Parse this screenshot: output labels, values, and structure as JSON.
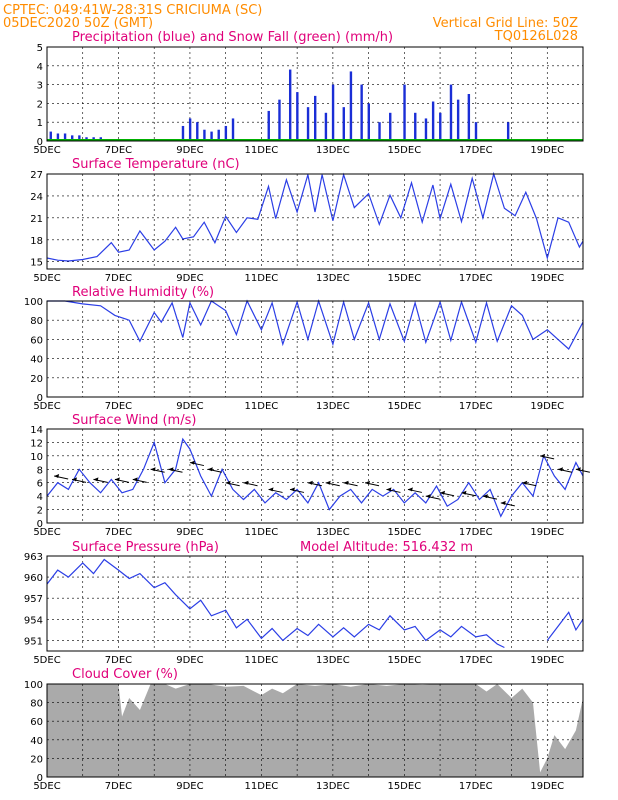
{
  "header": {
    "line1": "CPTEC:   049:41W-28:31S   CRICIUMA (SC)",
    "line2_left": "05DEC2020 50Z (GMT)",
    "line2_right": "Vertical Grid Line: 50Z",
    "line3_right": "TQ0126L028"
  },
  "x_ticks": [
    "5DEC",
    "7DEC",
    "9DEC",
    "11DEC",
    "13DEC",
    "15DEC",
    "17DEC",
    "19DEC"
  ],
  "x_range_days": [
    5,
    20
  ],
  "colors": {
    "series": "#2b3ee6",
    "precip": "#1a2ed6",
    "snow": "#00b000",
    "cloud": "#aaaaaa",
    "title": "#e0007a",
    "header": "#ff8c00"
  },
  "chart_data": [
    {
      "type": "bar",
      "title": "Precipitation (blue) and Snow Fall (green) (mm/h)",
      "ylim": [
        0,
        5
      ],
      "yticks": [
        "0",
        "1",
        "2",
        "3",
        "4",
        "5"
      ],
      "series": [
        {
          "name": "Precipitation",
          "x": [
            5.1,
            5.3,
            5.5,
            5.7,
            5.9,
            6.1,
            6.3,
            6.5,
            6.7,
            6.9,
            8.8,
            9.0,
            9.2,
            9.4,
            9.6,
            9.8,
            10.0,
            10.2,
            11.2,
            11.5,
            11.8,
            12.0,
            12.3,
            12.5,
            12.8,
            13.0,
            13.3,
            13.5,
            13.8,
            14.0,
            14.3,
            14.6,
            15.0,
            15.3,
            15.6,
            15.8,
            16.0,
            16.3,
            16.5,
            16.8,
            17.0,
            17.9
          ],
          "values": [
            0.5,
            0.4,
            0.4,
            0.3,
            0.3,
            0.2,
            0.2,
            0.2,
            0.1,
            0.1,
            0.8,
            1.2,
            1.0,
            0.6,
            0.5,
            0.6,
            0.8,
            1.2,
            1.6,
            2.2,
            3.8,
            2.6,
            1.8,
            2.4,
            1.5,
            3.0,
            1.8,
            3.7,
            3.0,
            2.0,
            1.0,
            1.5,
            3.0,
            1.5,
            1.2,
            2.1,
            1.5,
            3.0,
            2.2,
            2.5,
            1.0,
            1.0
          ]
        }
      ]
    },
    {
      "type": "line",
      "title": "Surface Temperature (nC)",
      "ylim": [
        14,
        27
      ],
      "yticks": [
        "15",
        "18",
        "21",
        "24",
        "27"
      ],
      "series": [
        {
          "name": "",
          "x": [
            5.0,
            5.3,
            5.6,
            6.0,
            6.4,
            6.8,
            7.0,
            7.3,
            7.6,
            8.0,
            8.3,
            8.6,
            8.8,
            9.1,
            9.4,
            9.7,
            10.0,
            10.3,
            10.6,
            10.9,
            11.2,
            11.4,
            11.7,
            12.0,
            12.3,
            12.5,
            12.7,
            13.0,
            13.3,
            13.6,
            14.0,
            14.3,
            14.6,
            14.9,
            15.2,
            15.5,
            15.8,
            16.0,
            16.3,
            16.6,
            16.9,
            17.2,
            17.5,
            17.8,
            18.1,
            18.4,
            18.7,
            19.0,
            19.3,
            19.6,
            19.9,
            20.0
          ],
          "values": [
            15.5,
            15.2,
            15.1,
            15.3,
            15.7,
            17.6,
            16.3,
            16.6,
            19.2,
            16.6,
            17.8,
            19.7,
            18.1,
            18.4,
            20.4,
            17.6,
            21.2,
            19.0,
            21.0,
            20.8,
            25.3,
            20.9,
            26.2,
            21.8,
            26.9,
            21.8,
            26.9,
            20.6,
            26.9,
            22.4,
            24.3,
            20.1,
            24.1,
            21.0,
            25.8,
            20.4,
            25.5,
            20.9,
            25.6,
            20.5,
            26.4,
            21.0,
            27.0,
            22.3,
            21.3,
            24.5,
            20.9,
            15.5,
            21.0,
            20.4,
            17.0,
            17.8
          ]
        }
      ]
    },
    {
      "type": "line",
      "title": "Relative Humidity (%)",
      "ylim": [
        0,
        100
      ],
      "yticks": [
        "0",
        "20",
        "40",
        "60",
        "80",
        "100"
      ],
      "series": [
        {
          "name": "",
          "x": [
            5.0,
            5.5,
            6.0,
            6.5,
            6.9,
            7.3,
            7.6,
            8.0,
            8.2,
            8.5,
            8.8,
            9.0,
            9.3,
            9.6,
            10.0,
            10.3,
            10.6,
            11.0,
            11.3,
            11.6,
            12.0,
            12.3,
            12.6,
            13.0,
            13.3,
            13.6,
            14.0,
            14.3,
            14.6,
            15.0,
            15.3,
            15.6,
            16.0,
            16.3,
            16.6,
            17.0,
            17.3,
            17.6,
            18.0,
            18.3,
            18.6,
            19.0,
            19.3,
            19.6,
            20.0
          ],
          "values": [
            100,
            100,
            97,
            95,
            85,
            80,
            58,
            88,
            78,
            98,
            62,
            98,
            75,
            100,
            90,
            65,
            100,
            70,
            98,
            55,
            99,
            60,
            100,
            55,
            99,
            60,
            98,
            60,
            97,
            58,
            98,
            57,
            99,
            59,
            99,
            57,
            98,
            58,
            95,
            85,
            60,
            70,
            60,
            50,
            78
          ]
        }
      ]
    },
    {
      "type": "line",
      "title": "Surface Wind (m/s)",
      "ylim": [
        0,
        14
      ],
      "yticks": [
        "0",
        "2",
        "4",
        "6",
        "8",
        "10",
        "12",
        "14"
      ],
      "series": [
        {
          "name": "",
          "x": [
            5.0,
            5.3,
            5.6,
            5.9,
            6.2,
            6.5,
            6.8,
            7.1,
            7.4,
            7.7,
            8.0,
            8.3,
            8.6,
            8.8,
            9.0,
            9.3,
            9.6,
            9.9,
            10.2,
            10.5,
            10.8,
            11.1,
            11.4,
            11.7,
            12.0,
            12.3,
            12.6,
            12.9,
            13.2,
            13.5,
            13.8,
            14.1,
            14.4,
            14.7,
            15.0,
            15.3,
            15.6,
            15.9,
            16.2,
            16.5,
            16.8,
            17.1,
            17.4,
            17.7,
            18.0,
            18.3,
            18.6,
            18.9,
            19.2,
            19.5,
            19.8,
            20.0
          ],
          "values": [
            4,
            6,
            5,
            8,
            6,
            4.5,
            6.5,
            4.5,
            5,
            8,
            12,
            6,
            8,
            12.5,
            11,
            7,
            4,
            8,
            5,
            3.5,
            5,
            3,
            4.5,
            3.5,
            5,
            3,
            6,
            2,
            4,
            5,
            3,
            5,
            4,
            5,
            3,
            4.5,
            3,
            5.5,
            2.5,
            3.5,
            6,
            3.5,
            5,
            1,
            4,
            6,
            4,
            10,
            7,
            5,
            9,
            7
          ]
        }
      ]
    },
    {
      "type": "line",
      "title": "Surface Pressure (hPa)",
      "annotation": "Model Altitude: 516.432  m",
      "ylim": [
        949.5,
        963
      ],
      "yticks": [
        "951",
        "954",
        "957",
        "960",
        "963"
      ],
      "series": [
        {
          "name": "",
          "x": [
            5.0,
            5.3,
            5.6,
            6.0,
            6.3,
            6.6,
            7.0,
            7.3,
            7.6,
            8.0,
            8.3,
            8.6,
            9.0,
            9.3,
            9.6,
            10.0,
            10.3,
            10.6,
            11.0,
            11.3,
            11.6,
            12.0,
            12.3,
            12.6,
            13.0,
            13.3,
            13.6,
            14.0,
            14.3,
            14.6,
            15.0,
            15.3,
            15.6,
            16.0,
            16.3,
            16.6,
            17.0,
            17.3,
            17.6,
            17.8,
            19.0,
            19.3,
            19.6,
            19.8,
            20.0
          ],
          "values": [
            959,
            961,
            960,
            962,
            960.5,
            962.5,
            961,
            959.8,
            960.5,
            958.5,
            959.2,
            957.5,
            955.5,
            956.7,
            954.5,
            955.3,
            952.8,
            954,
            951.3,
            952.7,
            951,
            952.7,
            951.7,
            953.3,
            951.5,
            952.8,
            951.5,
            953.3,
            952.5,
            954.5,
            952.5,
            953,
            951,
            952.5,
            951.5,
            953,
            951.5,
            951.8,
            950.5,
            950,
            951,
            953,
            955,
            952.5,
            954
          ]
        }
      ]
    },
    {
      "type": "area",
      "title": "Cloud Cover (%)",
      "ylim": [
        0,
        100
      ],
      "yticks": [
        "0",
        "20",
        "40",
        "60",
        "80",
        "100"
      ],
      "series": [
        {
          "name": "",
          "x": [
            5.0,
            5.5,
            6.0,
            6.5,
            7.0,
            7.1,
            7.3,
            7.6,
            7.9,
            8.3,
            8.6,
            9.0,
            9.5,
            10.0,
            10.5,
            10.8,
            11.0,
            11.3,
            11.6,
            12.0,
            12.5,
            13.0,
            13.5,
            14.0,
            14.5,
            15.0,
            15.5,
            16.0,
            16.5,
            17.0,
            17.3,
            17.6,
            18.0,
            18.3,
            18.6,
            18.8,
            19.0,
            19.2,
            19.5,
            19.8,
            20.0
          ],
          "values": [
            100,
            100,
            100,
            100,
            100,
            65,
            85,
            72,
            100,
            100,
            95,
            100,
            100,
            97,
            98,
            92,
            88,
            95,
            90,
            100,
            98,
            100,
            97,
            100,
            98,
            100,
            99,
            100,
            100,
            100,
            92,
            100,
            85,
            95,
            80,
            5,
            20,
            45,
            30,
            50,
            85
          ]
        }
      ]
    }
  ]
}
